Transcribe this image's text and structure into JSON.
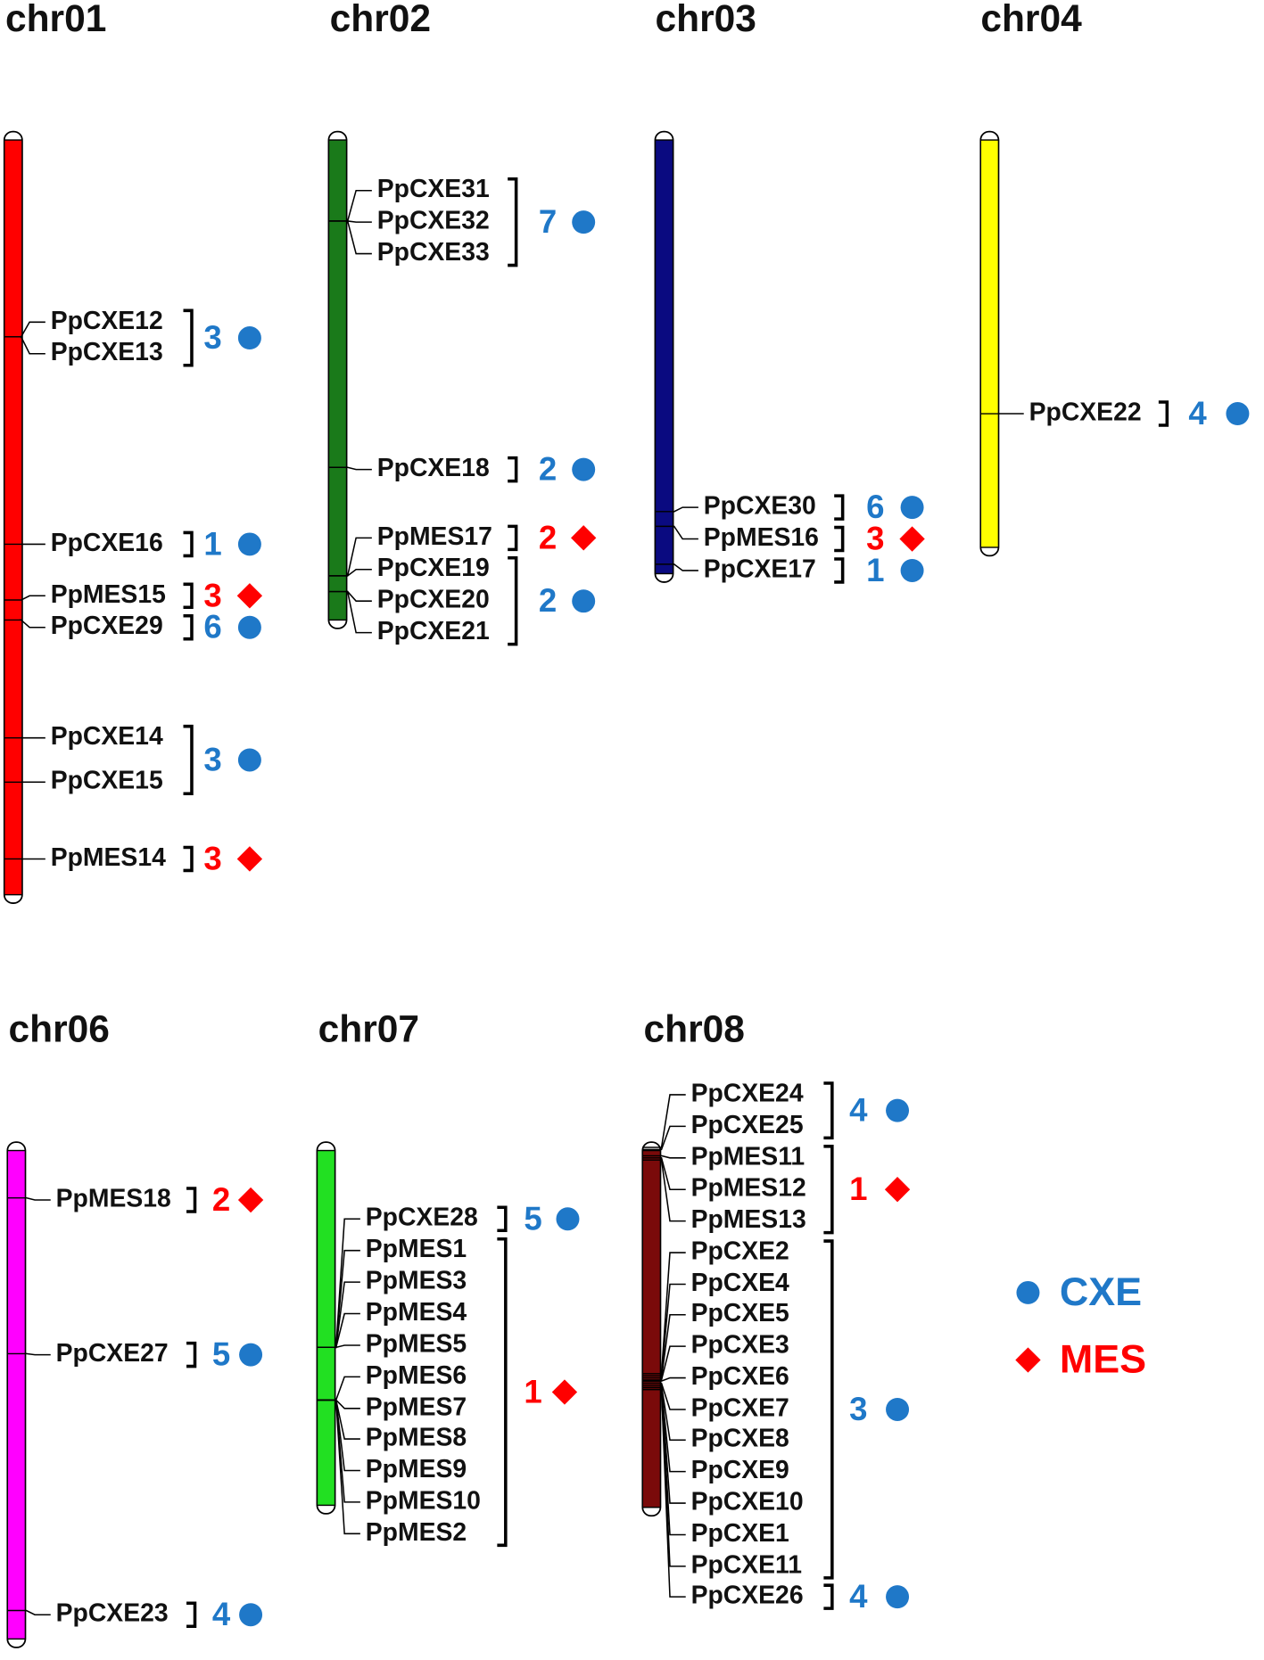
{
  "chromosomes": [
    {
      "name": "chr01",
      "color": "#ff0000",
      "groups": [
        {
          "genes": [
            "PpCXE12",
            "PpCXE13"
          ],
          "count": 3,
          "family": 0
        },
        {
          "genes": [
            "PpCXE16"
          ],
          "count": 1,
          "family": 0
        },
        {
          "genes": [
            "PpMES15"
          ],
          "count": 3,
          "family": 1
        },
        {
          "genes": [
            "PpCXE29"
          ],
          "count": 6,
          "family": 0
        },
        {
          "genes": [
            "PpCXE14",
            "PpCXE15"
          ],
          "count": 3,
          "family": 0
        },
        {
          "genes": [
            "PpMES14"
          ],
          "count": 3,
          "family": 1
        }
      ]
    },
    {
      "name": "chr02",
      "color": "#1a7a1a",
      "groups": [
        {
          "genes": [
            "PpCXE31",
            "PpCXE32",
            "PpCXE33"
          ],
          "count": 7,
          "family": 0
        },
        {
          "genes": [
            "PpCXE18"
          ],
          "count": 2,
          "family": 0
        },
        {
          "genes": [
            "PpMES17"
          ],
          "count": 2,
          "family": 1
        },
        {
          "genes": [
            "PpCXE19",
            "PpCXE20",
            "PpCXE21"
          ],
          "count": 2,
          "family": 0
        }
      ]
    },
    {
      "name": "chr03",
      "color": "#0a0a80",
      "groups": [
        {
          "genes": [
            "PpCXE30"
          ],
          "count": 6,
          "family": 0
        },
        {
          "genes": [
            "PpMES16"
          ],
          "count": 3,
          "family": 1
        },
        {
          "genes": [
            "PpCXE17"
          ],
          "count": 1,
          "family": 0
        }
      ]
    },
    {
      "name": "chr04",
      "color": "#ffff00",
      "groups": [
        {
          "genes": [
            "PpCXE22"
          ],
          "count": 4,
          "family": 0
        }
      ]
    },
    {
      "name": "chr06",
      "color": "#ff00ff",
      "groups": [
        {
          "genes": [
            "PpMES18"
          ],
          "count": 2,
          "family": 1
        },
        {
          "genes": [
            "PpCXE27"
          ],
          "count": 5,
          "family": 0
        },
        {
          "genes": [
            "PpCXE23"
          ],
          "count": 4,
          "family": 0
        }
      ]
    },
    {
      "name": "chr07",
      "color": "#22e022",
      "groups": [
        {
          "genes": [
            "PpCXE28"
          ],
          "count": 5,
          "family": 0
        },
        {
          "genes": [
            "PpMES1",
            "PpMES3",
            "PpMES4",
            "PpMES5",
            "PpMES6",
            "PpMES7",
            "PpMES8",
            "PpMES9",
            "PpMES10",
            "PpMES2"
          ],
          "count": 1,
          "family": 1
        }
      ]
    },
    {
      "name": "chr08",
      "color": "#7a0a0a",
      "groups": [
        {
          "genes": [
            "PpCXE24",
            "PpCXE25"
          ],
          "count": 4,
          "family": 0
        },
        {
          "genes": [
            "PpMES11",
            "PpMES12",
            "PpMES13"
          ],
          "count": 1,
          "family": 1
        },
        {
          "genes": [
            "PpCXE2",
            "PpCXE4",
            "PpCXE5",
            "PpCXE3",
            "PpCXE6",
            "PpCXE7",
            "PpCXE8",
            "PpCXE9",
            "PpCXE10",
            "PpCXE1",
            "PpCXE11"
          ],
          "count": 3,
          "family": 0
        },
        {
          "genes": [
            "PpCXE26"
          ],
          "count": 4,
          "family": 0
        }
      ]
    }
  ],
  "legend": [
    {
      "label": "CXE",
      "color": "#1f78c8",
      "shape": "circle"
    },
    {
      "label": "MES",
      "color": "#ff0000",
      "shape": "diamond"
    }
  ]
}
